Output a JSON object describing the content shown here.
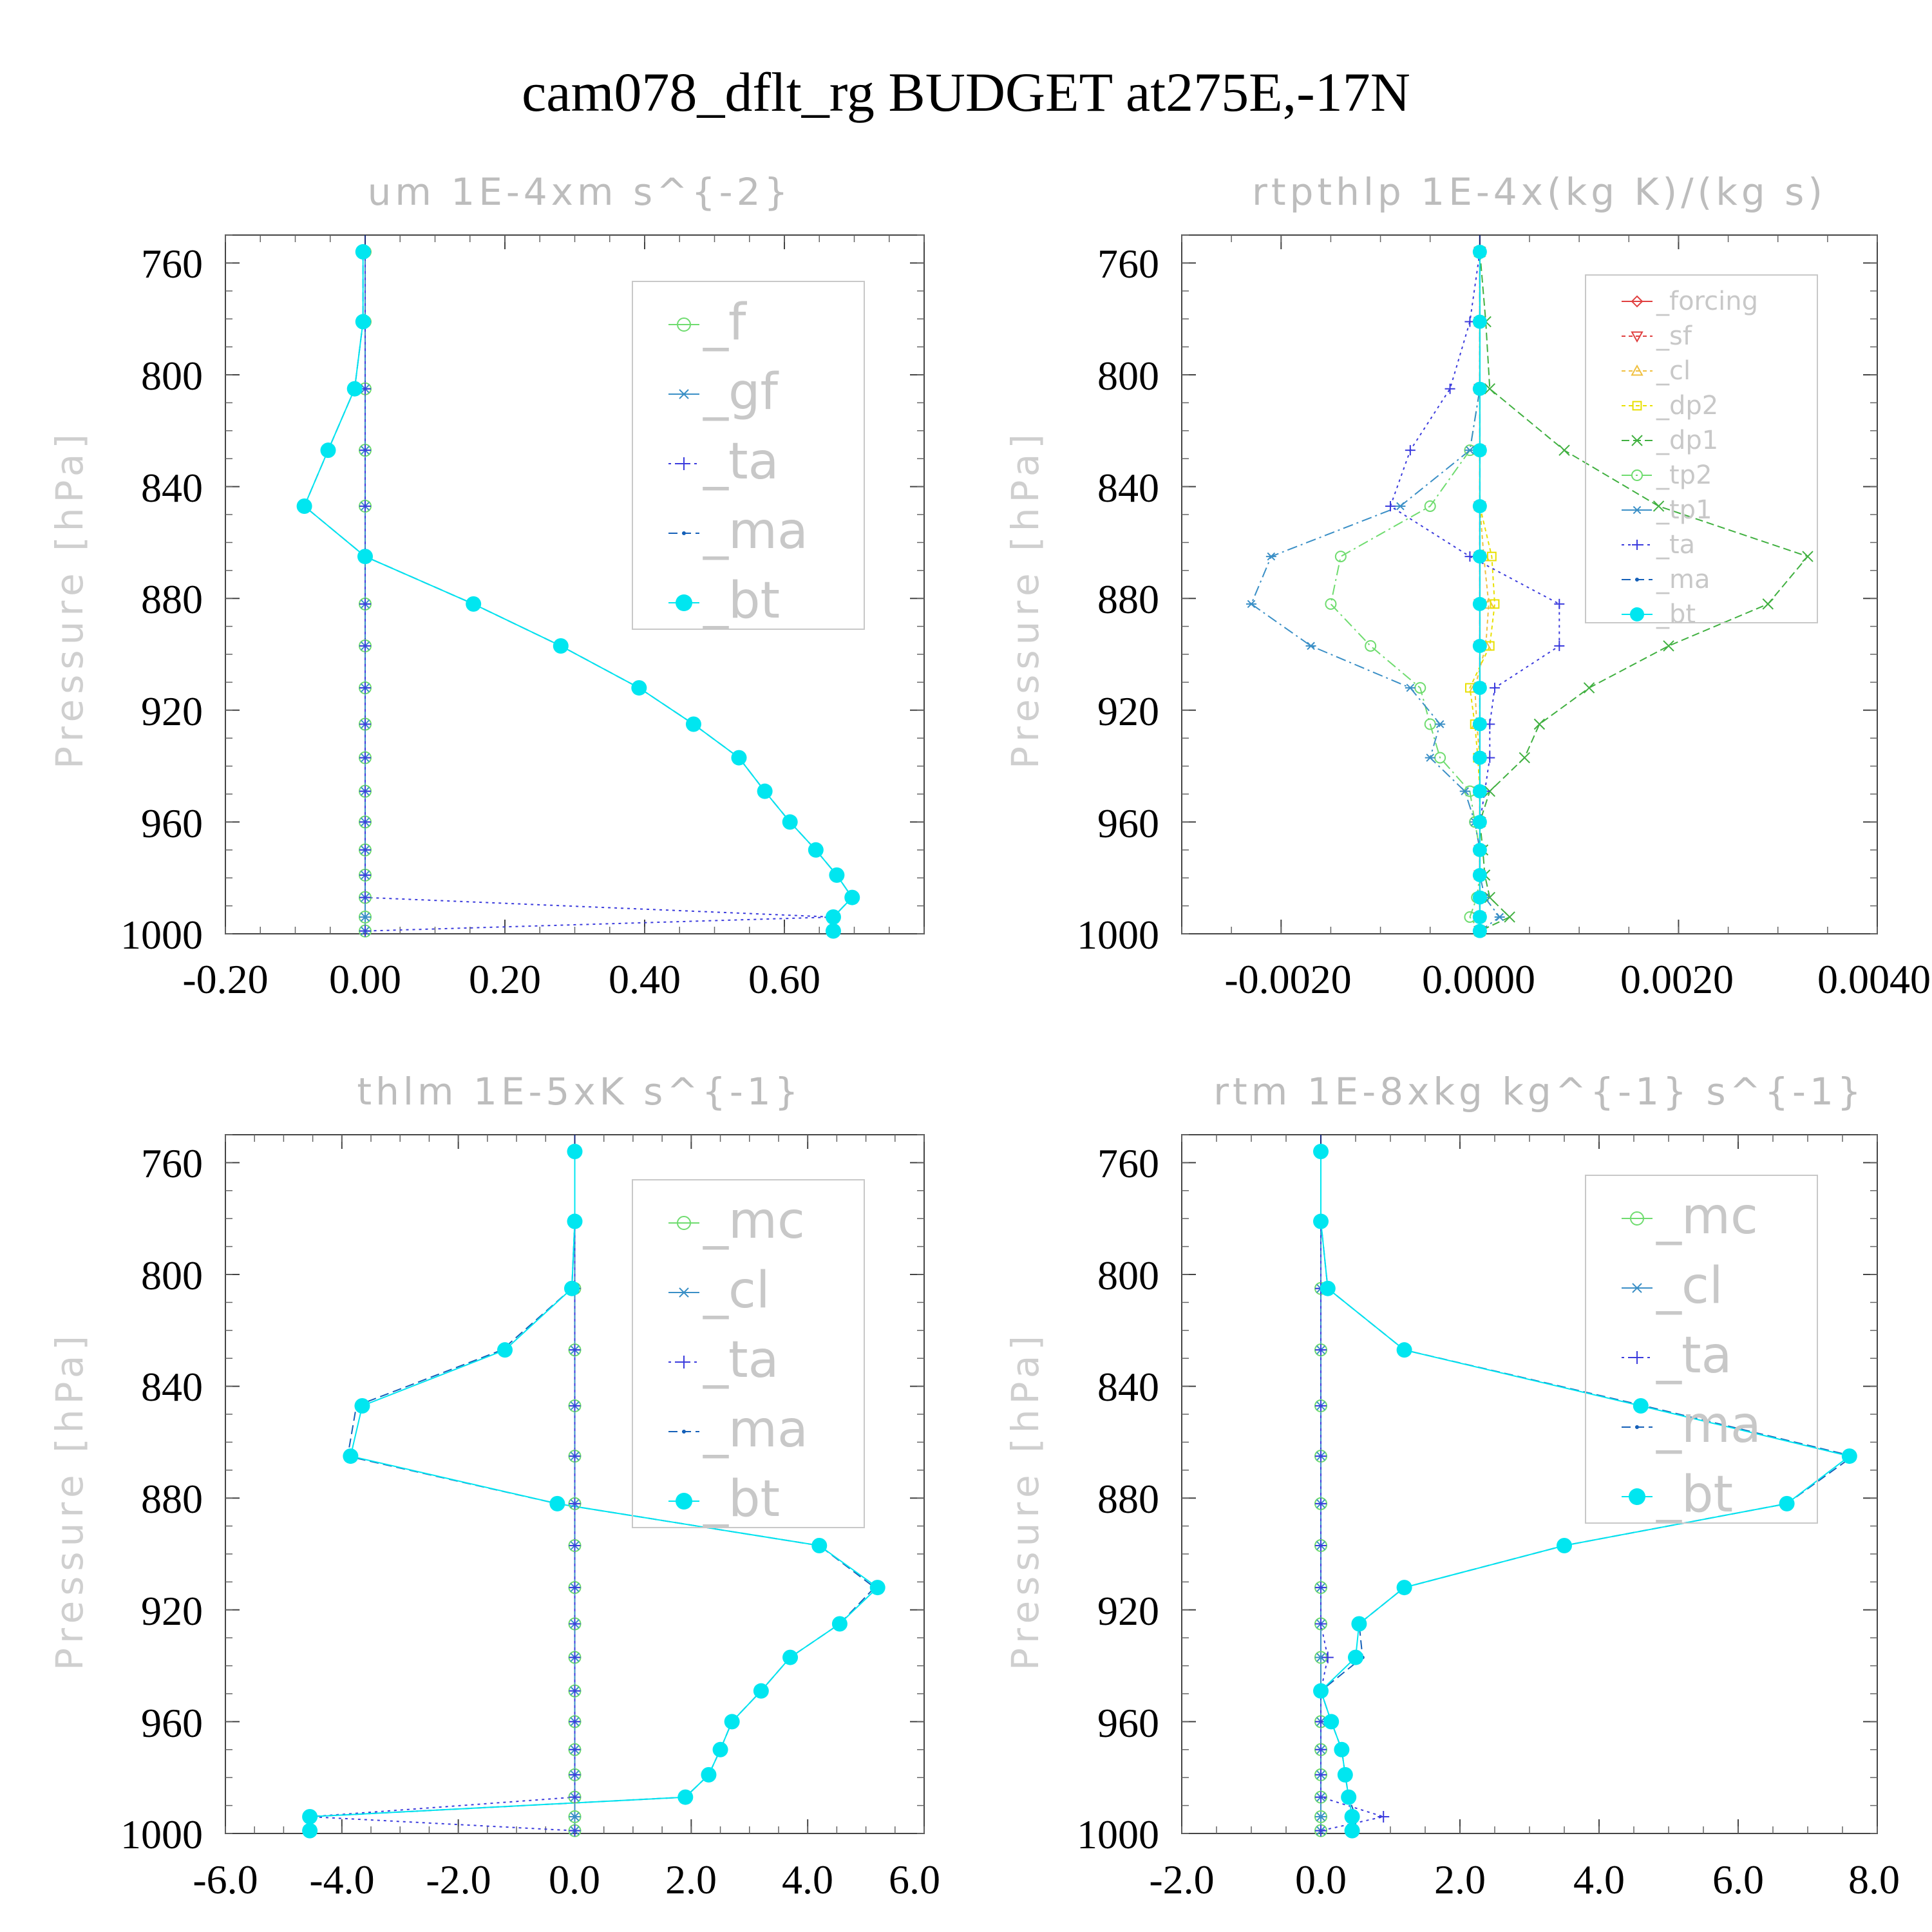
{
  "figure": {
    "title": "cam078_dflt_rg  BUDGET at275E,-17N"
  },
  "chart_data": [
    {
      "id": "um",
      "type": "line",
      "title": "um   1E-4xm s^{-2}",
      "ylabel": "Pressure [hPa]",
      "xlabel": "",
      "xlim": [
        -0.2,
        0.8
      ],
      "ylim": [
        1000,
        750
      ],
      "xticks": [
        "-0.20",
        "0.00",
        "0.20",
        "0.40",
        "0.60"
      ],
      "xtick_values": [
        -0.2,
        0.0,
        0.2,
        0.4,
        0.6
      ],
      "yticks": [
        "760",
        "800",
        "840",
        "880",
        "920",
        "960",
        "1000"
      ],
      "ytick_values": [
        760,
        800,
        840,
        880,
        920,
        960,
        1000
      ],
      "grid": false,
      "legend_position": "upper-right",
      "legend": [
        "_f",
        "_gf",
        "_ta",
        "_ma",
        "_bt"
      ],
      "pressure": [
        756,
        781,
        805,
        827,
        847,
        865,
        882,
        897,
        912,
        925,
        937,
        949,
        960,
        970,
        979,
        987,
        994,
        999
      ],
      "series": [
        {
          "name": "_f",
          "color": "#6fdc6f",
          "marker": "circle",
          "dash": "",
          "values": [
            0,
            0,
            0,
            0,
            0,
            0,
            0,
            0,
            0,
            0,
            0,
            0,
            0,
            0,
            0,
            0,
            0,
            0
          ]
        },
        {
          "name": "_gf",
          "color": "#3a8fc6",
          "marker": "star",
          "dash": "",
          "values": [
            0,
            0,
            0,
            0,
            0,
            0,
            0,
            0,
            0,
            0,
            0,
            0,
            0,
            0,
            0,
            0,
            0,
            0
          ]
        },
        {
          "name": "_ta",
          "color": "#3b3bdd",
          "marker": "plus",
          "dash": "4,6",
          "values": [
            0,
            0,
            0,
            0,
            0,
            0,
            0,
            0,
            0,
            0,
            0,
            0,
            0,
            0,
            0,
            0,
            0.67,
            0
          ]
        },
        {
          "name": "_ma",
          "color": "#1560b8",
          "marker": "dot",
          "dash": "14,7",
          "values": [
            -0.003,
            -0.003,
            -0.015,
            -0.053,
            -0.087,
            0,
            0.155,
            0.28,
            0.392,
            0.47,
            0.535,
            0.572,
            0.608,
            0.645,
            0.675,
            0.697,
            0.67,
            0.67
          ]
        },
        {
          "name": "_bt",
          "color": "#00e6f0",
          "marker": "filled",
          "dash": "",
          "values": [
            -0.003,
            -0.003,
            -0.015,
            -0.053,
            -0.087,
            0,
            0.155,
            0.28,
            0.392,
            0.47,
            0.535,
            0.572,
            0.608,
            0.645,
            0.675,
            0.697,
            0.67,
            0.67
          ]
        }
      ]
    },
    {
      "id": "rtpthlp",
      "type": "line",
      "title": "rtpthlp   1E-4x(kg K)/(kg s)",
      "ylabel": "Pressure [hPa]",
      "xlabel": "",
      "xlim": [
        -0.003,
        0.004
      ],
      "ylim": [
        1000,
        750
      ],
      "xticks": [
        "-0.0020",
        "0.0000",
        "0.0020",
        "0.0040"
      ],
      "xtick_values": [
        -0.002,
        0.0,
        0.002,
        0.004
      ],
      "yticks": [
        "760",
        "800",
        "840",
        "880",
        "920",
        "960",
        "1000"
      ],
      "ytick_values": [
        760,
        800,
        840,
        880,
        920,
        960,
        1000
      ],
      "grid": false,
      "legend_position": "upper-right",
      "legend": [
        "_forcing",
        "_sf",
        "_cl",
        "_dp2",
        "_dp1",
        "_tp2",
        "_tp1",
        "_ta",
        "_ma",
        "_bt"
      ],
      "pressure": [
        756,
        781,
        805,
        827,
        847,
        865,
        882,
        897,
        912,
        925,
        937,
        949,
        960,
        970,
        979,
        987,
        994,
        999
      ],
      "series": [
        {
          "name": "_forcing",
          "color": "#e04040",
          "marker": "diamond",
          "dash": "",
          "values": [
            0,
            0,
            0,
            0,
            0,
            0,
            0,
            0,
            0,
            0,
            0,
            0,
            0,
            0,
            0,
            0,
            0,
            0
          ]
        },
        {
          "name": "_sf",
          "color": "#e04040",
          "marker": "tridown",
          "dash": "6,5",
          "values": [
            0,
            0,
            0,
            0,
            0,
            0,
            0,
            0,
            0,
            0,
            0,
            0,
            0,
            0,
            0,
            0,
            0,
            0
          ]
        },
        {
          "name": "_cl",
          "color": "#f0c040",
          "marker": "triup",
          "dash": "6,5",
          "values": [
            0,
            0,
            0,
            0,
            0,
            4e-05,
            9e-05,
            6e-05,
            -5e-05,
            -3e-05,
            0,
            0,
            0,
            0,
            0,
            0,
            0,
            0
          ]
        },
        {
          "name": "_dp2",
          "color": "#e8e000",
          "marker": "square",
          "dash": "6,5",
          "values": [
            0,
            0,
            0,
            0,
            0,
            0.00012,
            0.00015,
            0.0001,
            -0.0001,
            -5e-05,
            -2e-05,
            0,
            0,
            0,
            0,
            0,
            0,
            0
          ]
        },
        {
          "name": "_dp1",
          "color": "#40b040",
          "marker": "x",
          "dash": "12,6",
          "values": [
            0,
            6e-05,
            0.0001,
            0.00085,
            0.0018,
            0.0033,
            0.0029,
            0.0019,
            0.0011,
            0.0006,
            0.00045,
            0.0001,
            0,
            3e-05,
            5e-05,
            0.0001,
            0.0003,
            0
          ]
        },
        {
          "name": "_tp2",
          "color": "#6fdc6f",
          "marker": "circle",
          "dash": "16,6,3,6",
          "values": [
            0,
            0,
            0,
            -0.0001,
            -0.0005,
            -0.0014,
            -0.0015,
            -0.0011,
            -0.0006,
            -0.0005,
            -0.0004,
            -0.0001,
            -5e-05,
            0,
            0,
            -3e-05,
            -0.0001,
            0
          ]
        },
        {
          "name": "_tp1",
          "color": "#3a8fc6",
          "marker": "star",
          "dash": "16,6,3,6",
          "values": [
            0,
            0,
            0,
            -0.0001,
            -0.0008,
            -0.0021,
            -0.0023,
            -0.0017,
            -0.0007,
            -0.0004,
            -0.0005,
            -0.00015,
            -5e-05,
            0,
            0,
            5e-05,
            0.0002,
            0
          ]
        },
        {
          "name": "_ta",
          "color": "#3b3bdd",
          "marker": "plus",
          "dash": "4,6",
          "values": [
            0,
            -0.0001,
            -0.0003,
            -0.0007,
            -0.0009,
            -0.0001,
            0.0008,
            0.0008,
            0.00015,
            0.0001,
            0.0001,
            5e-05,
            0,
            0,
            0,
            0,
            0,
            0
          ]
        },
        {
          "name": "_ma",
          "color": "#1560b8",
          "marker": "dot",
          "dash": "14,7",
          "values": [
            0,
            0,
            0,
            0,
            0,
            0,
            0,
            0,
            0,
            0,
            0,
            0,
            0,
            0,
            0,
            0,
            0,
            0
          ]
        },
        {
          "name": "_bt",
          "color": "#00e6f0",
          "marker": "filled",
          "dash": "",
          "values": [
            0,
            0,
            0,
            0,
            0,
            0,
            0,
            0,
            0,
            0,
            0,
            0,
            0,
            0,
            0,
            0,
            0,
            0
          ]
        }
      ]
    },
    {
      "id": "thlm",
      "type": "line",
      "title": "thlm   1E-5xK s^{-1}",
      "ylabel": "Pressure [hPa]",
      "xlabel": "",
      "xlim": [
        -6.0,
        6.0
      ],
      "ylim": [
        1000,
        750
      ],
      "xticks": [
        "-6.0",
        "-4.0",
        "-2.0",
        "0.0",
        "2.0",
        "4.0",
        "6.0"
      ],
      "xtick_values": [
        -6,
        -4,
        -2,
        0,
        2,
        4,
        6
      ],
      "yticks": [
        "760",
        "800",
        "840",
        "880",
        "920",
        "960",
        "1000"
      ],
      "ytick_values": [
        760,
        800,
        840,
        880,
        920,
        960,
        1000
      ],
      "grid": false,
      "legend_position": "upper-right",
      "legend": [
        "_mc",
        "_cl",
        "_ta",
        "_ma",
        "_bt"
      ],
      "pressure": [
        756,
        781,
        805,
        827,
        847,
        865,
        882,
        897,
        912,
        925,
        937,
        949,
        960,
        970,
        979,
        987,
        994,
        999
      ],
      "series": [
        {
          "name": "_mc",
          "color": "#6fdc6f",
          "marker": "circle",
          "dash": "",
          "values": [
            0,
            0,
            0,
            0,
            0,
            0,
            0,
            0,
            0,
            0,
            0,
            0,
            0,
            0,
            0,
            0,
            0,
            0
          ]
        },
        {
          "name": "_cl",
          "color": "#3a8fc6",
          "marker": "star",
          "dash": "",
          "values": [
            0,
            0,
            0,
            0,
            0,
            0,
            0,
            0,
            0,
            0,
            0,
            0,
            0,
            0,
            0,
            0,
            0,
            0
          ]
        },
        {
          "name": "_ta",
          "color": "#3b3bdd",
          "marker": "plus",
          "dash": "4,6",
          "values": [
            0,
            0,
            0,
            0,
            0,
            0,
            0,
            0,
            0,
            0,
            0,
            0,
            0,
            0,
            0,
            0,
            -4.55,
            0
          ]
        },
        {
          "name": "_ma",
          "color": "#1560b8",
          "marker": "dot",
          "dash": "14,7",
          "values": [
            0,
            0,
            -0.05,
            -1.25,
            -3.75,
            -3.9,
            -0.3,
            4.2,
            5.15,
            4.55,
            3.7,
            3.2,
            2.7,
            2.5,
            2.3,
            1.9,
            -4.55,
            -4.55
          ]
        },
        {
          "name": "_bt",
          "color": "#00e6f0",
          "marker": "filled",
          "dash": "",
          "values": [
            0,
            0,
            -0.05,
            -1.2,
            -3.65,
            -3.85,
            -0.3,
            4.2,
            5.2,
            4.55,
            3.7,
            3.2,
            2.7,
            2.5,
            2.3,
            1.9,
            -4.55,
            -4.55
          ]
        }
      ]
    },
    {
      "id": "rtm",
      "type": "line",
      "title": "rtm   1E-8xkg kg^{-1} s^{-1}",
      "ylabel": "Pressure [hPa]",
      "xlabel": "",
      "xlim": [
        -2.0,
        8.0
      ],
      "ylim": [
        1000,
        750
      ],
      "xticks": [
        "-2.0",
        "0.0",
        "2.0",
        "4.0",
        "6.0",
        "8.0"
      ],
      "xtick_values": [
        -2,
        0,
        2,
        4,
        6,
        8
      ],
      "yticks": [
        "760",
        "800",
        "840",
        "880",
        "920",
        "960",
        "1000"
      ],
      "ytick_values": [
        760,
        800,
        840,
        880,
        920,
        960,
        1000
      ],
      "grid": false,
      "legend_position": "upper-right",
      "legend": [
        "_mc",
        "_cl",
        "_ta",
        "_ma",
        "_bt"
      ],
      "pressure": [
        756,
        781,
        805,
        827,
        847,
        865,
        882,
        897,
        912,
        925,
        937,
        949,
        960,
        970,
        979,
        987,
        994,
        999
      ],
      "series": [
        {
          "name": "_mc",
          "color": "#6fdc6f",
          "marker": "circle",
          "dash": "",
          "values": [
            0,
            0,
            0,
            0,
            0,
            0,
            0,
            0,
            0,
            0,
            0,
            0,
            0,
            0,
            0,
            0,
            0,
            0
          ]
        },
        {
          "name": "_cl",
          "color": "#3a8fc6",
          "marker": "star",
          "dash": "",
          "values": [
            0,
            0,
            0,
            0,
            0,
            0,
            0,
            0,
            0,
            0,
            0,
            0,
            0,
            0,
            0,
            0,
            0,
            0
          ]
        },
        {
          "name": "_ta",
          "color": "#3b3bdd",
          "marker": "plus",
          "dash": "4,6",
          "values": [
            0,
            0,
            0,
            0,
            0,
            0,
            0,
            0,
            0,
            0,
            0.1,
            0,
            0,
            0,
            0,
            0,
            0.9,
            0
          ]
        },
        {
          "name": "_ma",
          "color": "#1560b8",
          "marker": "dot",
          "dash": "14,7",
          "values": [
            0,
            0,
            0.1,
            1.2,
            4.65,
            7.65,
            6.7,
            3.5,
            1.2,
            0.55,
            0.6,
            0,
            0.15,
            0.3,
            0.35,
            0.4,
            0.5,
            0.5
          ]
        },
        {
          "name": "_bt",
          "color": "#00e6f0",
          "marker": "filled",
          "dash": "",
          "values": [
            0,
            0,
            0.1,
            1.2,
            4.6,
            7.6,
            6.7,
            3.5,
            1.2,
            0.55,
            0.5,
            0,
            0.15,
            0.3,
            0.35,
            0.4,
            0.45,
            0.45
          ]
        }
      ]
    }
  ]
}
